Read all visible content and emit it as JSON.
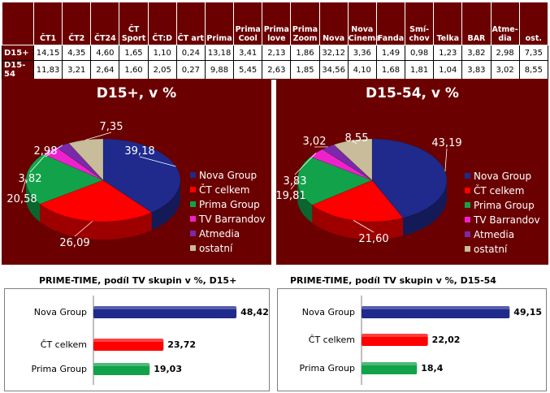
{
  "table": {
    "headers": [
      "",
      "ČT1",
      "ČT2",
      "ČT24",
      "ČT\nSport",
      "ČT:D",
      "ČT art",
      "Prima",
      "Prima\nCool",
      "Prima\nlove",
      "Prima\nZoom",
      "Nova",
      "Nova\nCinema",
      "Fanda",
      "Smí-\nchov",
      "Telka",
      "BAR",
      "Atme-\ndia",
      "ost."
    ],
    "rows": [
      {
        "label": "D15+",
        "values": [
          "14,15",
          "4,35",
          "4,60",
          "1,65",
          "1,10",
          "0,24",
          "13,18",
          "3,41",
          "2,13",
          "1,86",
          "32,12",
          "3,36",
          "1,49",
          "0,98",
          "1,23",
          "3,82",
          "2,98",
          "7,35"
        ]
      },
      {
        "label": "D15-54",
        "values": [
          "11,83",
          "3,21",
          "2,64",
          "1,60",
          "2,05",
          "0,27",
          "9,88",
          "5,45",
          "2,63",
          "1,85",
          "34,56",
          "4,10",
          "1,68",
          "1,81",
          "1,04",
          "3,83",
          "3,02",
          "8,55"
        ]
      }
    ]
  },
  "chart_data": [
    {
      "type": "pie",
      "title": "D15+, v %",
      "categories": [
        "Nova Group",
        "ČT celkem",
        "Prima Group",
        "TV Barrandov",
        "Atmedia",
        "ostatní"
      ],
      "values": [
        39.18,
        26.09,
        20.58,
        3.82,
        2.98,
        7.35
      ],
      "labels": [
        "39,18",
        "26,09",
        "20,58",
        "3,82",
        "2,98",
        "7,35"
      ],
      "colors": [
        "#1f2a8c",
        "#ff0000",
        "#12a34a",
        "#ee22cc",
        "#7a2aa8",
        "#c8bc9a"
      ],
      "legend": "right"
    },
    {
      "type": "pie",
      "title": "D15-54, v %",
      "categories": [
        "Nova Group",
        "ČT celkem",
        "Prima Group",
        "TV Barrandov",
        "Atmedia",
        "ostatní"
      ],
      "values": [
        43.19,
        21.6,
        19.81,
        3.83,
        3.02,
        8.55
      ],
      "labels": [
        "43,19",
        "21,60",
        "19,81",
        "3,83",
        "3,02",
        "8,55"
      ],
      "colors": [
        "#1f2a8c",
        "#ff0000",
        "#12a34a",
        "#ee22cc",
        "#7a2aa8",
        "#c8bc9a"
      ],
      "legend": "right"
    },
    {
      "type": "bar",
      "title": "PRIME-TIME, podíl TV skupin v %, D15+",
      "categories": [
        "Nova Group",
        "ČT celkem",
        "Prima Group"
      ],
      "values": [
        48.42,
        23.72,
        19.03
      ],
      "labels": [
        "48,42",
        "23,72",
        "19,03"
      ],
      "colors": [
        "#1f2a8c",
        "#ff0000",
        "#12a34a"
      ],
      "xlim": [
        0,
        55
      ]
    },
    {
      "type": "bar",
      "title": "PRIME-TIME, podíl TV skupin v %, D15-54",
      "categories": [
        "Nova Group",
        "ČT celkem",
        "Prima Group"
      ],
      "values": [
        49.15,
        22.02,
        18.4
      ],
      "labels": [
        "49,15",
        "22,02",
        "18,4"
      ],
      "colors": [
        "#1f2a8c",
        "#ff0000",
        "#12a34a"
      ],
      "xlim": [
        0,
        55
      ]
    }
  ]
}
